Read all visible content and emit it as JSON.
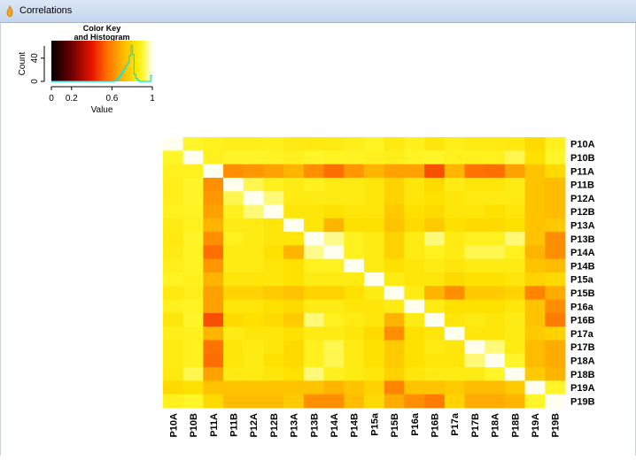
{
  "window": {
    "title": "Correlations",
    "icon": "r-app-icon"
  },
  "color_key": {
    "title_line1": "Color Key",
    "title_line2": "and Histogram",
    "ylabel": "Count",
    "xlabel": "Value",
    "yticks": [
      "0",
      "40"
    ],
    "xticks": [
      "0",
      "0.2",
      "0.6",
      "1"
    ],
    "histogram_color": "#00e5ee"
  },
  "chart_data": {
    "type": "heatmap",
    "title": "",
    "labels": [
      "P10A",
      "P10B",
      "P11A",
      "P11B",
      "P12A",
      "P12B",
      "P13A",
      "P13B",
      "P14A",
      "P14B",
      "P15a",
      "P15B",
      "P16a",
      "P16B",
      "P17a",
      "P17B",
      "P18A",
      "P18B",
      "P19A",
      "P19B"
    ],
    "value_range": [
      0,
      1
    ],
    "palette": "heat (black-red-orange-yellow-white)",
    "values": [
      [
        1.0,
        0.9,
        0.88,
        0.87,
        0.87,
        0.88,
        0.86,
        0.85,
        0.86,
        0.87,
        0.89,
        0.85,
        0.88,
        0.84,
        0.87,
        0.86,
        0.86,
        0.85,
        0.8,
        0.88
      ],
      [
        0.9,
        1.0,
        0.88,
        0.9,
        0.9,
        0.89,
        0.88,
        0.9,
        0.89,
        0.89,
        0.88,
        0.87,
        0.89,
        0.9,
        0.88,
        0.88,
        0.88,
        0.92,
        0.82,
        0.9
      ],
      [
        0.88,
        0.88,
        1.0,
        0.62,
        0.64,
        0.66,
        0.7,
        0.62,
        0.55,
        0.64,
        0.7,
        0.66,
        0.66,
        0.5,
        0.7,
        0.56,
        0.55,
        0.66,
        0.74,
        0.8
      ],
      [
        0.87,
        0.9,
        0.62,
        1.0,
        0.92,
        0.88,
        0.86,
        0.88,
        0.86,
        0.86,
        0.84,
        0.78,
        0.84,
        0.8,
        0.86,
        0.84,
        0.84,
        0.86,
        0.74,
        0.72
      ],
      [
        0.87,
        0.9,
        0.64,
        0.92,
        1.0,
        0.94,
        0.86,
        0.86,
        0.86,
        0.86,
        0.84,
        0.78,
        0.84,
        0.82,
        0.84,
        0.86,
        0.86,
        0.86,
        0.74,
        0.72
      ],
      [
        0.88,
        0.89,
        0.66,
        0.88,
        0.94,
        1.0,
        0.84,
        0.84,
        0.82,
        0.84,
        0.84,
        0.76,
        0.82,
        0.8,
        0.84,
        0.84,
        0.82,
        0.84,
        0.74,
        0.72
      ],
      [
        0.86,
        0.88,
        0.7,
        0.86,
        0.86,
        0.84,
        1.0,
        0.84,
        0.7,
        0.82,
        0.82,
        0.74,
        0.8,
        0.76,
        0.82,
        0.8,
        0.8,
        0.82,
        0.74,
        0.76
      ],
      [
        0.85,
        0.9,
        0.62,
        0.88,
        0.86,
        0.84,
        0.84,
        1.0,
        0.95,
        0.88,
        0.86,
        0.78,
        0.86,
        0.94,
        0.86,
        0.88,
        0.88,
        0.94,
        0.74,
        0.62
      ],
      [
        0.86,
        0.89,
        0.55,
        0.86,
        0.86,
        0.82,
        0.7,
        0.95,
        1.0,
        0.88,
        0.86,
        0.78,
        0.86,
        0.88,
        0.86,
        0.92,
        0.92,
        0.88,
        0.7,
        0.62
      ],
      [
        0.87,
        0.89,
        0.64,
        0.86,
        0.86,
        0.84,
        0.82,
        0.88,
        0.88,
        1.0,
        0.86,
        0.82,
        0.84,
        0.86,
        0.84,
        0.86,
        0.86,
        0.86,
        0.74,
        0.72
      ],
      [
        0.89,
        0.88,
        0.7,
        0.84,
        0.84,
        0.84,
        0.82,
        0.86,
        0.86,
        0.86,
        1.0,
        0.86,
        0.84,
        0.84,
        0.8,
        0.82,
        0.82,
        0.84,
        0.78,
        0.8
      ],
      [
        0.85,
        0.87,
        0.66,
        0.78,
        0.78,
        0.76,
        0.74,
        0.78,
        0.78,
        0.82,
        0.86,
        1.0,
        0.86,
        0.7,
        0.62,
        0.76,
        0.76,
        0.78,
        0.6,
        0.68
      ],
      [
        0.88,
        0.89,
        0.66,
        0.84,
        0.84,
        0.82,
        0.8,
        0.86,
        0.86,
        0.84,
        0.84,
        0.86,
        1.0,
        0.86,
        0.82,
        0.82,
        0.82,
        0.84,
        0.74,
        0.62
      ],
      [
        0.84,
        0.9,
        0.5,
        0.8,
        0.82,
        0.8,
        0.76,
        0.94,
        0.88,
        0.86,
        0.84,
        0.7,
        0.86,
        1.0,
        0.84,
        0.86,
        0.84,
        0.86,
        0.74,
        0.58
      ],
      [
        0.87,
        0.88,
        0.7,
        0.86,
        0.84,
        0.84,
        0.82,
        0.86,
        0.86,
        0.84,
        0.8,
        0.62,
        0.82,
        0.84,
        1.0,
        0.84,
        0.84,
        0.86,
        0.76,
        0.78
      ],
      [
        0.86,
        0.88,
        0.56,
        0.84,
        0.86,
        0.84,
        0.8,
        0.88,
        0.92,
        0.86,
        0.82,
        0.76,
        0.82,
        0.86,
        0.84,
        1.0,
        0.94,
        0.86,
        0.72,
        0.68
      ],
      [
        0.86,
        0.88,
        0.55,
        0.84,
        0.86,
        0.82,
        0.8,
        0.88,
        0.92,
        0.86,
        0.82,
        0.76,
        0.82,
        0.84,
        0.84,
        0.94,
        1.0,
        0.9,
        0.72,
        0.68
      ],
      [
        0.85,
        0.92,
        0.66,
        0.86,
        0.86,
        0.84,
        0.82,
        0.94,
        0.88,
        0.86,
        0.84,
        0.78,
        0.84,
        0.86,
        0.86,
        0.86,
        0.9,
        1.0,
        0.76,
        0.7
      ],
      [
        0.8,
        0.82,
        0.74,
        0.74,
        0.74,
        0.74,
        0.74,
        0.74,
        0.7,
        0.74,
        0.78,
        0.6,
        0.74,
        0.74,
        0.76,
        0.72,
        0.72,
        0.76,
        1.0,
        0.9
      ],
      [
        0.88,
        0.9,
        0.8,
        0.72,
        0.72,
        0.72,
        0.76,
        0.62,
        0.62,
        0.72,
        0.8,
        0.68,
        0.62,
        0.58,
        0.78,
        0.68,
        0.68,
        0.7,
        0.9,
        1.0
      ]
    ],
    "histogram_bins": [
      0,
      0,
      0,
      0,
      0,
      0,
      0,
      0,
      0,
      0,
      0,
      0,
      0,
      0,
      0,
      0,
      0,
      0,
      0,
      0,
      0,
      0,
      0,
      0,
      0,
      0,
      0,
      0,
      0,
      0,
      0,
      0,
      0,
      0,
      0,
      0,
      0,
      0,
      1,
      3,
      6,
      9,
      13,
      18,
      22,
      28,
      32,
      44,
      62,
      46,
      12,
      5,
      2,
      0,
      0,
      0,
      0,
      0,
      0,
      0,
      10
    ],
    "histogram_ymax": 70
  }
}
